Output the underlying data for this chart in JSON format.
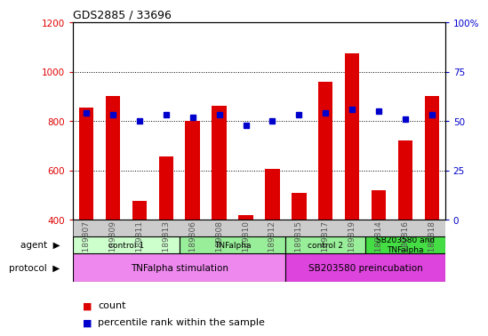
{
  "title": "GDS2885 / 33696",
  "samples": [
    "GSM189807",
    "GSM189809",
    "GSM189811",
    "GSM189813",
    "GSM189806",
    "GSM189808",
    "GSM189810",
    "GSM189812",
    "GSM189815",
    "GSM189817",
    "GSM189819",
    "GSM189814",
    "GSM189816",
    "GSM189818"
  ],
  "counts": [
    855,
    900,
    475,
    655,
    800,
    860,
    420,
    605,
    510,
    960,
    1075,
    520,
    720,
    900
  ],
  "percentile_ranks": [
    54,
    53,
    50,
    53,
    52,
    53,
    48,
    50,
    53,
    54,
    56,
    55,
    51,
    53
  ],
  "ylim_left": [
    400,
    1200
  ],
  "ylim_right": [
    0,
    100
  ],
  "yticks_left": [
    400,
    600,
    800,
    1000,
    1200
  ],
  "yticks_right": [
    0,
    25,
    50,
    75,
    100
  ],
  "bar_color": "#dd0000",
  "dot_color": "#0000cc",
  "bar_bottom": 400,
  "agent_groups": [
    {
      "label": "control 1",
      "start": 0,
      "end": 4,
      "color": "#ccffcc"
    },
    {
      "label": "TNFalpha",
      "start": 4,
      "end": 8,
      "color": "#99ee99"
    },
    {
      "label": "control 2",
      "start": 8,
      "end": 11,
      "color": "#99ee99"
    },
    {
      "label": "SB203580 and\nTNFalpha",
      "start": 11,
      "end": 14,
      "color": "#44dd44"
    }
  ],
  "protocol_groups": [
    {
      "label": "TNFalpha stimulation",
      "start": 0,
      "end": 8,
      "color": "#ee88ee"
    },
    {
      "label": "SB203580 preincubation",
      "start": 8,
      "end": 14,
      "color": "#dd44dd"
    }
  ],
  "bar_bg_color": "#cccccc",
  "grid_color": "#000000",
  "tick_label_color_left": "#dd0000",
  "tick_label_color_right": "#0000cc",
  "xlabel_color": "#555555"
}
